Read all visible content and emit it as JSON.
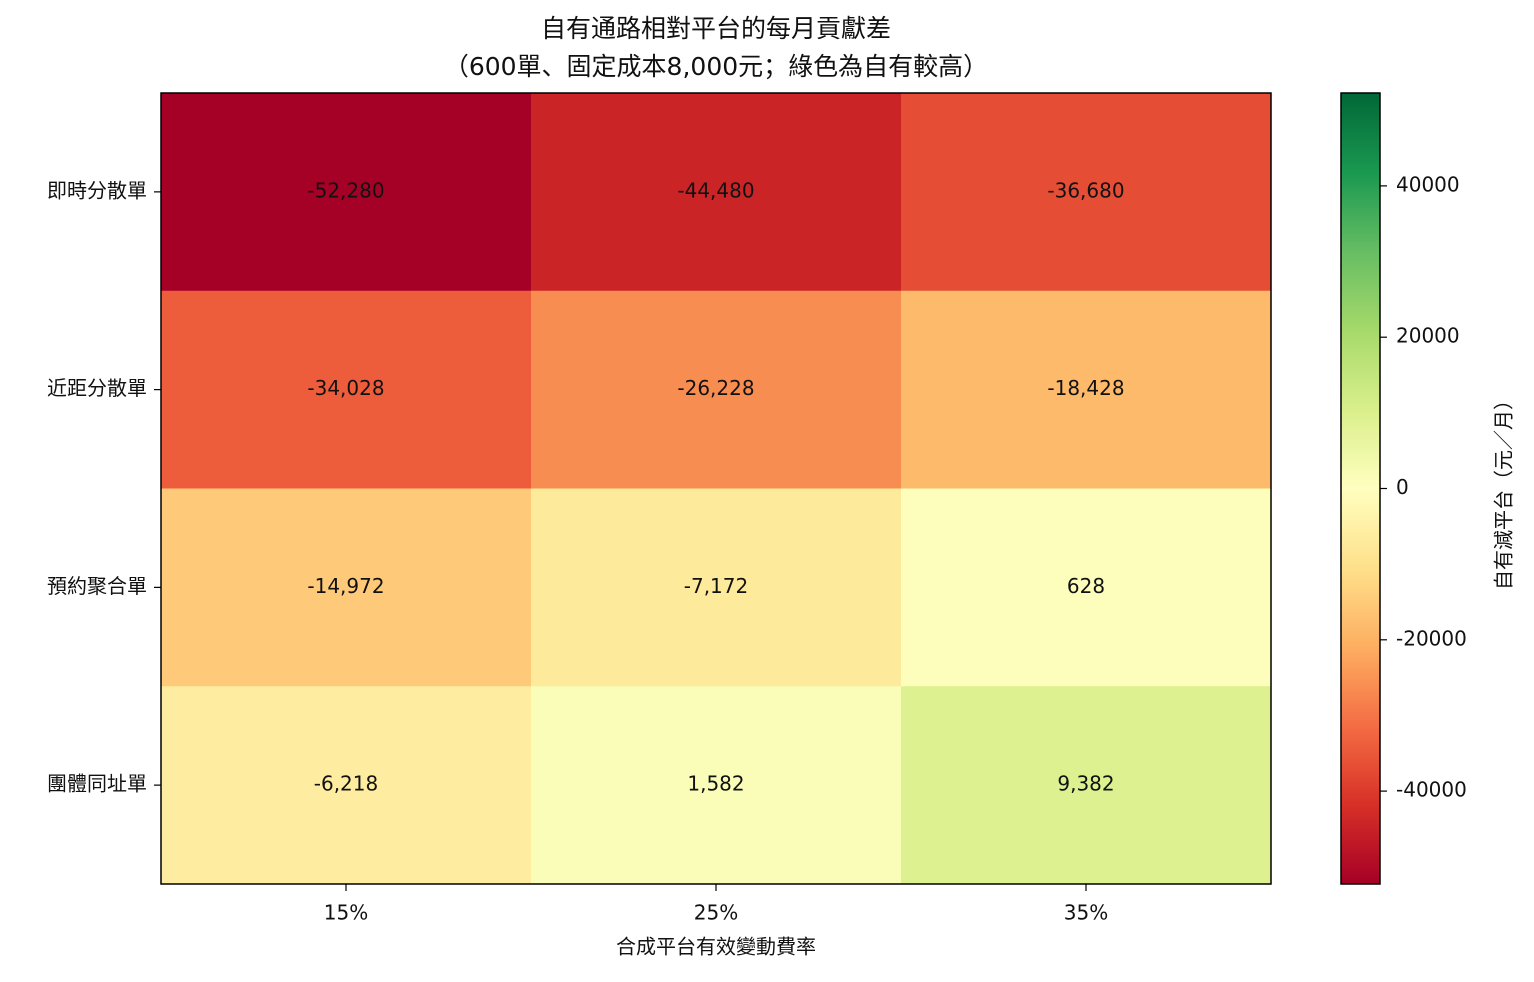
{
  "chart_data": {
    "type": "heatmap",
    "title": "自有通路相對平台的每月貢獻差",
    "subtitle": "（600單、固定成本8,000元；綠色為自有較高）",
    "x_label": "合成平台有效變動費率",
    "categories": [
      "15%",
      "25%",
      "35%"
    ],
    "rows": [
      "即時分散單",
      "近距分散單",
      "預約聚合單",
      "團體同址單"
    ],
    "values": [
      [
        -52280,
        -44480,
        -36680
      ],
      [
        -34028,
        -26228,
        -18428
      ],
      [
        -14972,
        -7172,
        628
      ],
      [
        -6218,
        1582,
        9382
      ]
    ],
    "value_labels": [
      [
        "-52,280",
        "-44,480",
        "-36,680"
      ],
      [
        "-34,028",
        "-26,228",
        "-18,428"
      ],
      [
        "-14,972",
        "-7,172",
        "628"
      ],
      [
        "-6,218",
        "1,582",
        "9,382"
      ]
    ],
    "colormap": "RdYlGn",
    "colorbar_label": "自有減平台（元／月）",
    "clim": [
      -52280,
      52280
    ],
    "cbar_ticks": [
      -40000,
      -20000,
      0,
      20000,
      40000
    ]
  }
}
